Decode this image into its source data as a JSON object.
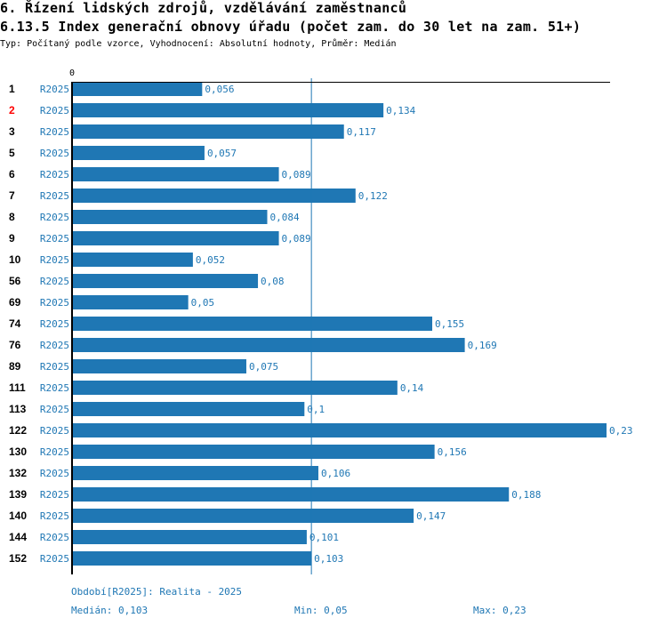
{
  "header": {
    "title": "6. Řízení lidských zdrojů, vzdělávání zaměstnanců",
    "subtitle": "6.13.5 Index generační obnovy úřadu (počet zam. do 30 let na zam. 51+)",
    "meta": "Typ: Počítaný podle vzorce, Vyhodnocení: Absolutní hodnoty, Průměr: Medián"
  },
  "chart_data": {
    "type": "bar",
    "orientation": "horizontal",
    "axis_zero_label": "0",
    "xlim": [
      0,
      0.23
    ],
    "median": 0.103,
    "series_label": "R2025",
    "bar_color": "#1f77b4",
    "highlight_color": "#ff0000",
    "rows": [
      {
        "id": "1",
        "value": 0.056,
        "label": "0,056"
      },
      {
        "id": "2",
        "value": 0.134,
        "label": "0,134",
        "highlight": true
      },
      {
        "id": "3",
        "value": 0.117,
        "label": "0,117"
      },
      {
        "id": "5",
        "value": 0.057,
        "label": "0,057"
      },
      {
        "id": "6",
        "value": 0.089,
        "label": "0,089"
      },
      {
        "id": "7",
        "value": 0.122,
        "label": "0,122"
      },
      {
        "id": "8",
        "value": 0.084,
        "label": "0,084"
      },
      {
        "id": "9",
        "value": 0.089,
        "label": "0,089"
      },
      {
        "id": "10",
        "value": 0.052,
        "label": "0,052"
      },
      {
        "id": "56",
        "value": 0.08,
        "label": "0,08"
      },
      {
        "id": "69",
        "value": 0.05,
        "label": "0,05"
      },
      {
        "id": "74",
        "value": 0.155,
        "label": "0,155"
      },
      {
        "id": "76",
        "value": 0.169,
        "label": "0,169"
      },
      {
        "id": "89",
        "value": 0.075,
        "label": "0,075"
      },
      {
        "id": "111",
        "value": 0.14,
        "label": "0,14"
      },
      {
        "id": "113",
        "value": 0.1,
        "label": "0,1"
      },
      {
        "id": "122",
        "value": 0.23,
        "label": "0,23"
      },
      {
        "id": "130",
        "value": 0.156,
        "label": "0,156"
      },
      {
        "id": "132",
        "value": 0.106,
        "label": "0,106"
      },
      {
        "id": "139",
        "value": 0.188,
        "label": "0,188"
      },
      {
        "id": "140",
        "value": 0.147,
        "label": "0,147"
      },
      {
        "id": "144",
        "value": 0.101,
        "label": "0,101"
      },
      {
        "id": "152",
        "value": 0.103,
        "label": "0,103"
      }
    ]
  },
  "footer": {
    "period": "Období[R2025]: Realita - 2025",
    "median": "Medián: 0,103",
    "min": "Min: 0,05",
    "max": "Max: 0,23"
  }
}
